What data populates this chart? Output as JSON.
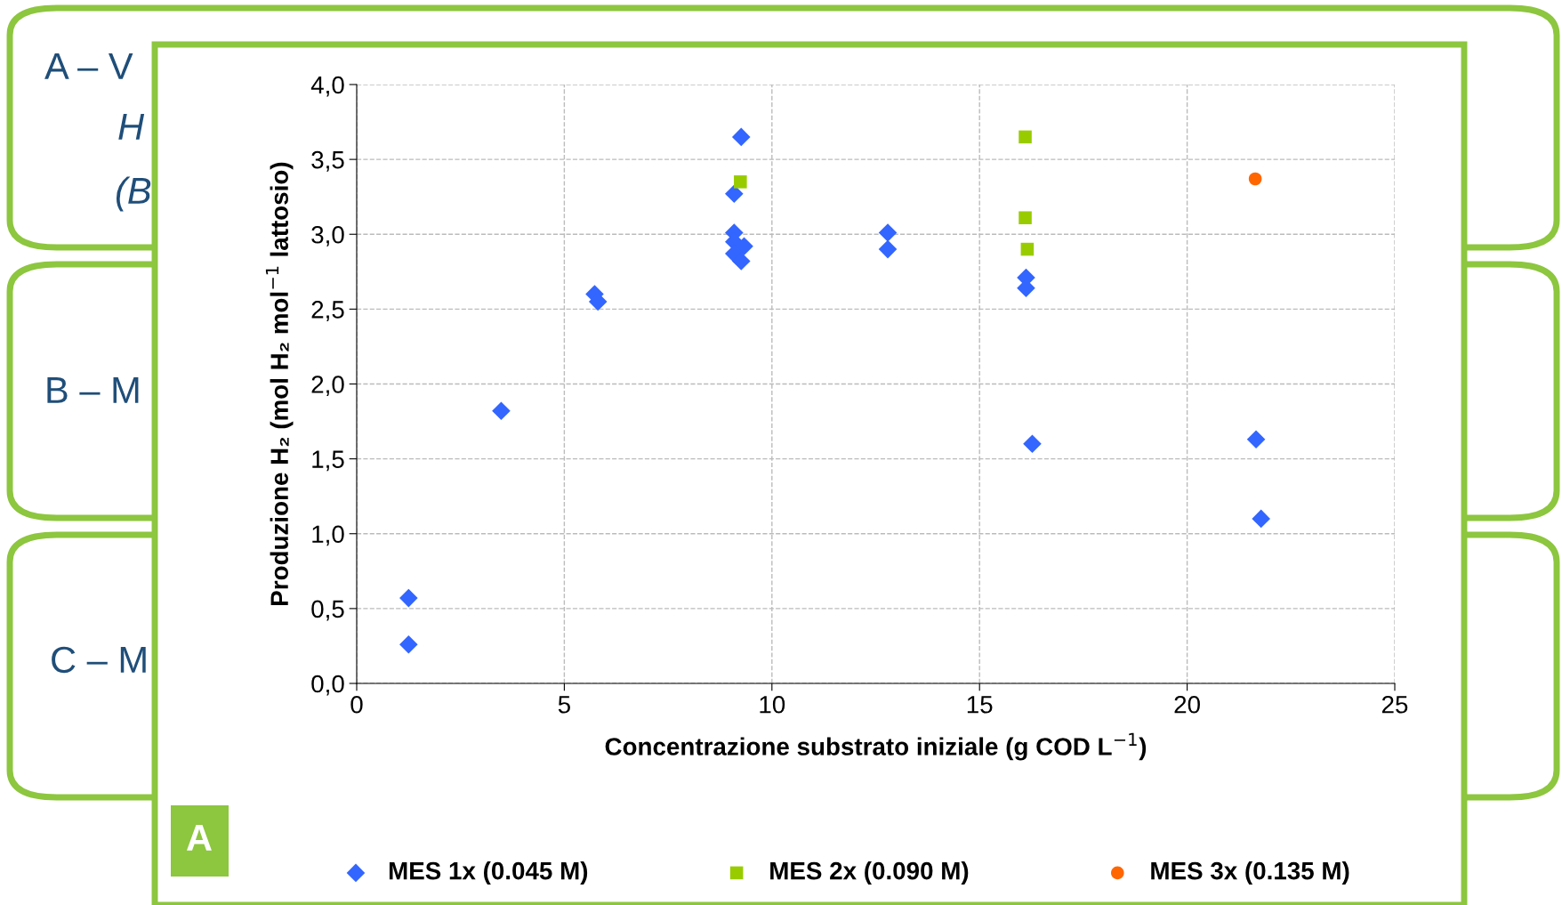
{
  "chart_data": {
    "type": "scatter",
    "xlabel": "Concentrazione substrato iniziale (g COD L$^{−1}$)",
    "ylabel": "Produzione H₂ (mol H₂ mol$^{−1}$ lattosio)",
    "xlim": [
      0,
      25
    ],
    "xticks": [
      0,
      5,
      10,
      15,
      20,
      25
    ],
    "ylim": [
      0,
      4.0
    ],
    "yticks": [
      {
        "value": 0,
        "label": "0,0"
      },
      {
        "value": 0.5,
        "label": "0,5"
      },
      {
        "value": 1.0,
        "label": "1,0"
      },
      {
        "value": 1.5,
        "label": "1,5"
      },
      {
        "value": 2.0,
        "label": "2,0"
      },
      {
        "value": 2.5,
        "label": "2,5"
      },
      {
        "value": 3.0,
        "label": "3,0"
      },
      {
        "value": 3.5,
        "label": "3,5"
      },
      {
        "value": 4.0,
        "label": "4,0"
      }
    ],
    "grid": true,
    "legend": "bottom",
    "series": [
      {
        "name": "MES 1x (0.045 M)",
        "color": "#3366ff",
        "marker": "diamond",
        "x": [
          1.25,
          1.25,
          3.48,
          5.73,
          5.81,
          9.26,
          9.09,
          9.09,
          9.09,
          9.33,
          9.09,
          9.26,
          12.79,
          12.79,
          16.12,
          16.12,
          16.27,
          21.66,
          21.78
        ],
        "values": [
          0.57,
          0.26,
          1.82,
          2.6,
          2.55,
          3.65,
          3.27,
          3.01,
          2.95,
          2.92,
          2.87,
          2.82,
          3.01,
          2.9,
          2.71,
          2.64,
          1.6,
          1.63,
          1.1
        ]
      },
      {
        "name": "MES 2x (0.090 M)",
        "color": "#99cc00",
        "marker": "square",
        "x": [
          9.24,
          16.1,
          16.1,
          16.15
        ],
        "values": [
          3.35,
          3.65,
          3.11,
          2.9
        ]
      },
      {
        "name": "MES 3x (0.135 M)",
        "color": "#ff6600",
        "marker": "circle",
        "x": [
          21.64
        ],
        "values": [
          3.37
        ]
      }
    ],
    "annotations": [
      "A – V",
      "H",
      "(B",
      "B – M",
      "C – M",
      "A"
    ]
  }
}
